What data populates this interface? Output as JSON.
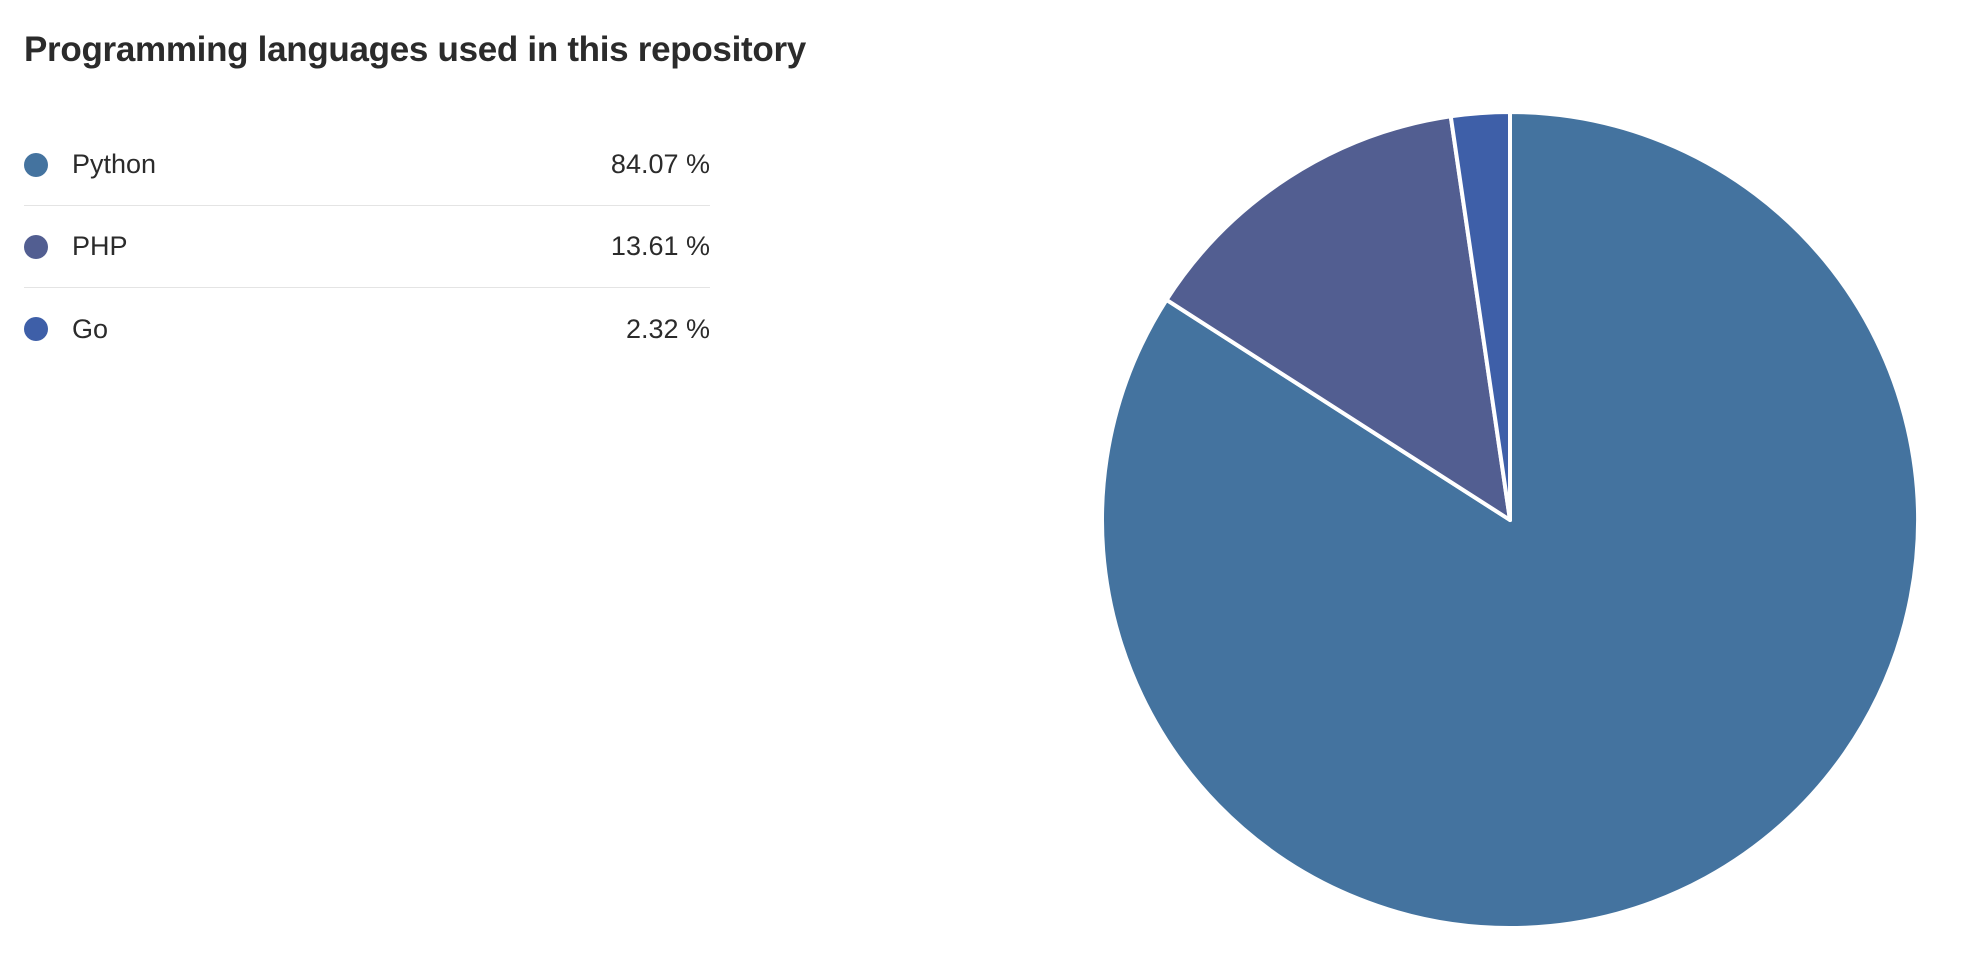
{
  "chart_data": {
    "type": "pie",
    "title": "Programming languages used in this repository",
    "series": [
      {
        "name": "Python",
        "value": 84.07,
        "label": "84.07 %",
        "color": "#44739f"
      },
      {
        "name": "PHP",
        "value": 13.61,
        "label": "13.61 %",
        "color": "#525e91"
      },
      {
        "name": "Go",
        "value": 2.32,
        "label": "2.32 %",
        "color": "#3e5fa8"
      }
    ],
    "start_angle": "12 o'clock",
    "direction": "clockwise",
    "legend": "left",
    "slice_border_color": "#ffffff"
  }
}
